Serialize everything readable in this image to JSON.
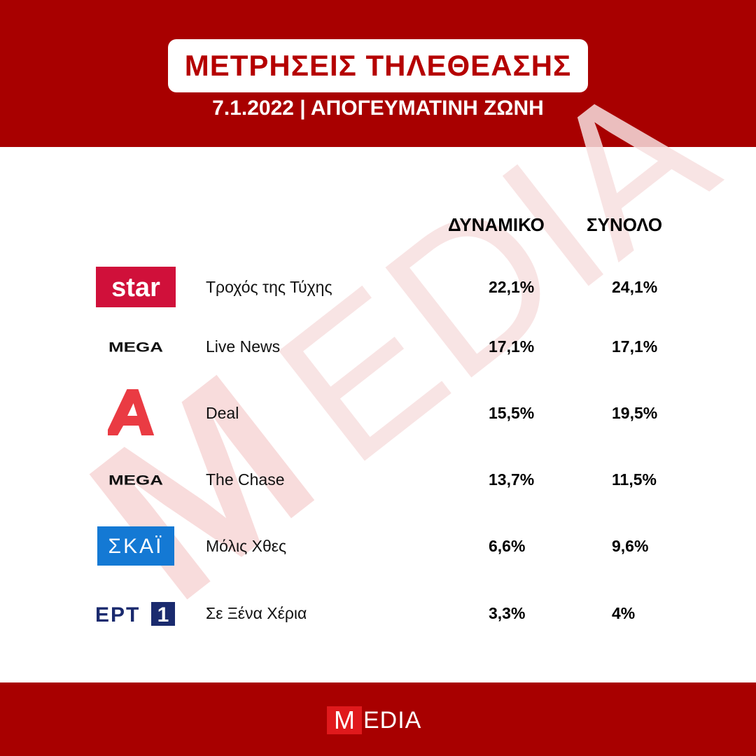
{
  "header": {
    "title": "ΜΕΤΡΗΣΕΙΣ ΤΗΛΕΘΕΑΣΗΣ",
    "subtitle": "7.1.2022 | ΑΠΟΓΕΥΜΑΤΙΝΗ ΖΩΝΗ"
  },
  "columns": {
    "dynamic": "ΔΥΝΑΜΙΚΟ",
    "total": "ΣΥΝΟΛΟ"
  },
  "rows": [
    {
      "channel": "star",
      "logo_icon": "star-logo-icon",
      "show": "Τροχός της Τύχης",
      "dynamic": "22,1%",
      "total": "24,1%"
    },
    {
      "channel": "MEGA",
      "logo_icon": "mega-logo-icon",
      "show": "Live News",
      "dynamic": "17,1%",
      "total": "17,1%"
    },
    {
      "channel": "ALPHA",
      "logo_icon": "alpha-logo-icon",
      "show": "Deal",
      "dynamic": "15,5%",
      "total": "19,5%"
    },
    {
      "channel": "MEGA",
      "logo_icon": "mega-logo-icon",
      "show": "The Chase",
      "dynamic": "13,7%",
      "total": "11,5%"
    },
    {
      "channel": "ΣΚΑΪ",
      "logo_icon": "skai-logo-icon",
      "show": "Μόλις Χθες",
      "dynamic": "6,6%",
      "total": "9,6%"
    },
    {
      "channel": "ΕΡΤ 1",
      "logo_icon": "ert1-logo-icon",
      "show": "Σε Ξένα Χέρια",
      "dynamic": "3,3%",
      "total": "4%"
    }
  ],
  "watermark": "MEDIA",
  "footer": {
    "logo_m": "M",
    "logo_rest": "EDIA"
  },
  "colors": {
    "brand_red": "#a80000",
    "title_red": "#b50000",
    "star_red": "#d0103a",
    "alpha_red": "#ea3b43",
    "skai_blue": "#1479d4",
    "ert_navy": "#1a2a6e"
  }
}
